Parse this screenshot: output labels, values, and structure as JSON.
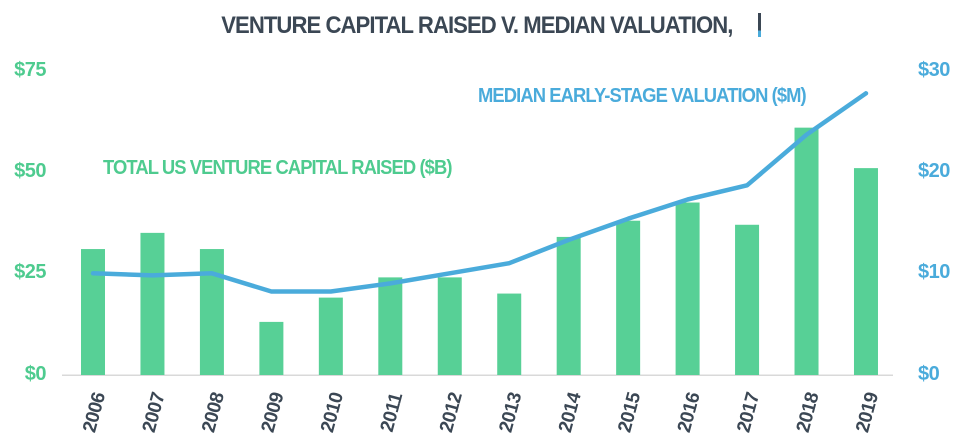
{
  "title": {
    "text": "VENTURE CAPITAL RAISED V. MEDIAN VALUATION,"
  },
  "colors": {
    "bar_green": "#57d096",
    "line_blue": "#4aabdb",
    "title_slate": "#3b4754",
    "axis_baseline_gray": "#d9d9d9",
    "left_axis_text": "#4ecb8f",
    "right_axis_text": "#4aabdb"
  },
  "chart_data": {
    "type": "bar",
    "subtype": "bar-and-line-combo",
    "title": "VENTURE CAPITAL RAISED V. MEDIAN VALUATION,",
    "categories": [
      "2006",
      "2007",
      "2008",
      "2009",
      "2010",
      "2011",
      "2012",
      "2013",
      "2014",
      "2015",
      "2016",
      "2017",
      "2018",
      "2019"
    ],
    "series": [
      {
        "name": "TOTAL US VENTURE CAPITAL RAISED ($B)",
        "type": "bar",
        "axis": "left",
        "color": "#57d096",
        "values": [
          31,
          35,
          31,
          13,
          19,
          24,
          24,
          20,
          34,
          38,
          42.5,
          37,
          61,
          51
        ]
      },
      {
        "name": "MEDIAN EARLY-STAGE VALUATION ($M)",
        "type": "line",
        "axis": "right",
        "color": "#4aabdb",
        "values": [
          10,
          9.8,
          10,
          8.2,
          8.2,
          9,
          10,
          11,
          13.3,
          15.4,
          17.3,
          18.7,
          23.7,
          27.8
        ]
      }
    ],
    "left_axis": {
      "ticks": [
        "$0",
        "$25",
        "$50",
        "$75"
      ],
      "tick_values": [
        0,
        25,
        50,
        75
      ],
      "range": [
        0,
        75
      ]
    },
    "right_axis": {
      "ticks": [
        "$0",
        "$10",
        "$20",
        "$30"
      ],
      "tick_values": [
        0,
        10,
        20,
        30
      ],
      "range": [
        0,
        30
      ]
    },
    "grid": false,
    "legend_position": "inline-series-labels"
  }
}
